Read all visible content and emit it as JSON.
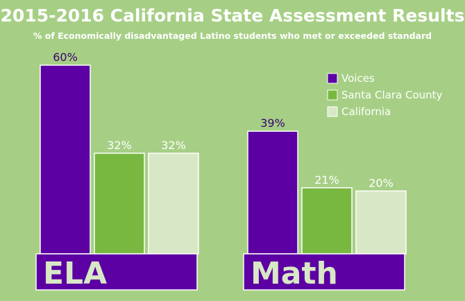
{
  "chart_data": {
    "type": "bar",
    "title": "2015-2016 California State Assessment Results",
    "subtitle": "% of Economically disadvantaged Latino students who met or exceeded standard",
    "categories": [
      "ELA",
      "Math"
    ],
    "series": [
      {
        "name": "Voices",
        "values": [
          60,
          39
        ],
        "labels": [
          "60%",
          "39%"
        ],
        "color": "#5c00a3"
      },
      {
        "name": "Santa Clara County",
        "values": [
          32,
          21
        ],
        "labels": [
          "32%",
          "21%"
        ],
        "color": "#78b840"
      },
      {
        "name": "California",
        "values": [
          32,
          20
        ],
        "labels": [
          "32%",
          "20%"
        ],
        "color": "#d8e8c6"
      }
    ],
    "ylim": [
      0,
      60
    ],
    "grid": false,
    "legend": "top-right",
    "colors": {
      "background": "#a6cf85",
      "category_band": "#5c00a3",
      "category_text": "#d8e8c6",
      "title_text": "#ffffff",
      "label_text_dark": "#3a0070",
      "label_text_light": "#ffffff"
    }
  }
}
